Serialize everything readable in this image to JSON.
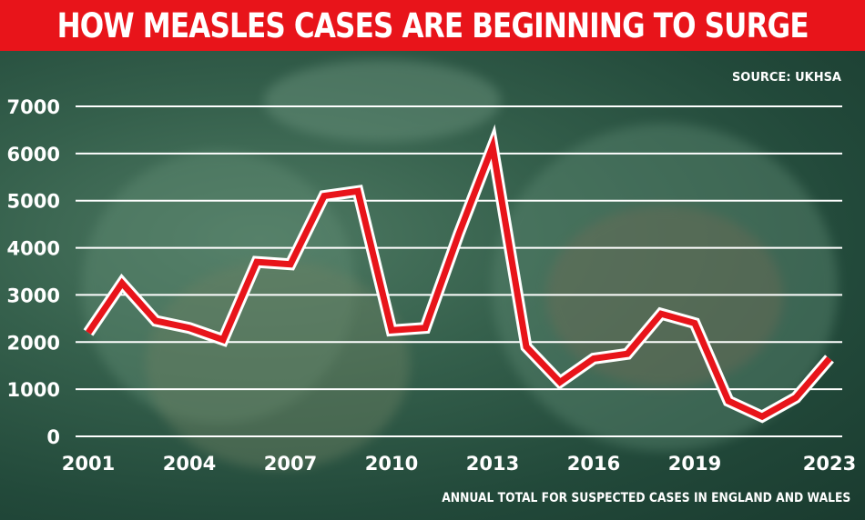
{
  "header": {
    "title": "HOW MEASLES CASES ARE BEGINNING TO SURGE"
  },
  "source": "SOURCE: UKHSA",
  "footnote": "ANNUAL TOTAL FOR SUSPECTED CASES IN ENGLAND AND WALES",
  "colors": {
    "title_bar": "#e8141a",
    "line": "#e8141a",
    "grid": "#ffffff"
  },
  "chart_data": {
    "type": "line",
    "title": "HOW MEASLES CASES ARE BEGINNING TO SURGE",
    "xlabel": "",
    "ylabel": "",
    "x": [
      2001,
      2002,
      2003,
      2004,
      2005,
      2006,
      2007,
      2008,
      2009,
      2010,
      2011,
      2012,
      2013,
      2014,
      2015,
      2016,
      2017,
      2018,
      2019,
      2020,
      2021,
      2022,
      2023
    ],
    "x_tick_labels": [
      "2001",
      "2004",
      "2007",
      "2010",
      "2013",
      "2016",
      "2019",
      "2023"
    ],
    "x_tick_values": [
      2001,
      2004,
      2007,
      2010,
      2013,
      2016,
      2019,
      2023
    ],
    "series": [
      {
        "values": [
          2200,
          3250,
          2450,
          2300,
          2050,
          3700,
          3650,
          5100,
          5200,
          2250,
          2300,
          4300,
          6150,
          1900,
          1150,
          1650,
          1750,
          2600,
          2400,
          750,
          420,
          820,
          1650
        ]
      }
    ],
    "y_tick_labels": [
      "0",
      "1000",
      "2000",
      "3000",
      "4000",
      "5000",
      "6000",
      "7000"
    ],
    "y_tick_values": [
      0,
      1000,
      2000,
      3000,
      4000,
      5000,
      6000,
      7000
    ],
    "ylim": [
      0,
      7000
    ],
    "xlim": [
      2001,
      2023
    ],
    "grid": true,
    "legend": "none"
  }
}
